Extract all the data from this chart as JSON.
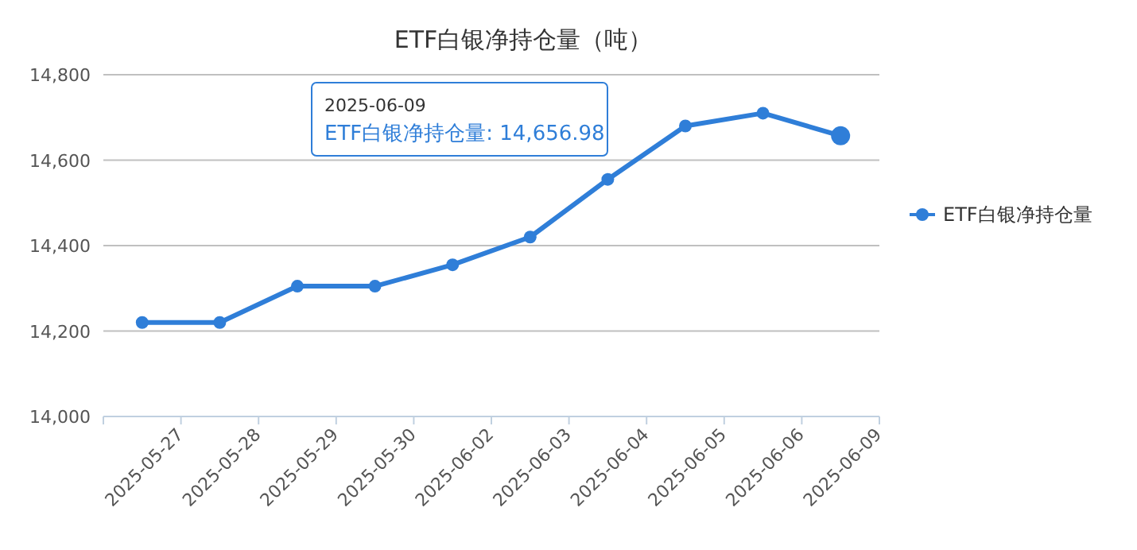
{
  "chart_data": {
    "type": "line",
    "title": "ETF白银净持仓量（吨）",
    "categories": [
      "2025-05-27",
      "2025-05-28",
      "2025-05-29",
      "2025-05-30",
      "2025-06-02",
      "2025-06-03",
      "2025-06-04",
      "2025-06-05",
      "2025-06-06",
      "2025-06-09"
    ],
    "series": [
      {
        "name": "ETF白银净持仓量",
        "color": "#2f7ed8",
        "values": [
          14220,
          14220,
          14305,
          14305,
          14355,
          14420,
          14555,
          14680,
          14710,
          14656.98
        ]
      }
    ],
    "ylim": [
      14000,
      14800
    ],
    "yticks": [
      {
        "value": 14000,
        "label": "14,000"
      },
      {
        "value": 14200,
        "label": "14,200"
      },
      {
        "value": 14400,
        "label": "14,400"
      },
      {
        "value": 14600,
        "label": "14,600"
      },
      {
        "value": 14800,
        "label": "14,800"
      }
    ],
    "grid": "y",
    "legend": "right",
    "marker": "circle",
    "line_style": "solid",
    "annotations": [
      "2025-06-09",
      "ETF白银净持仓量: 14,656.98"
    ]
  }
}
